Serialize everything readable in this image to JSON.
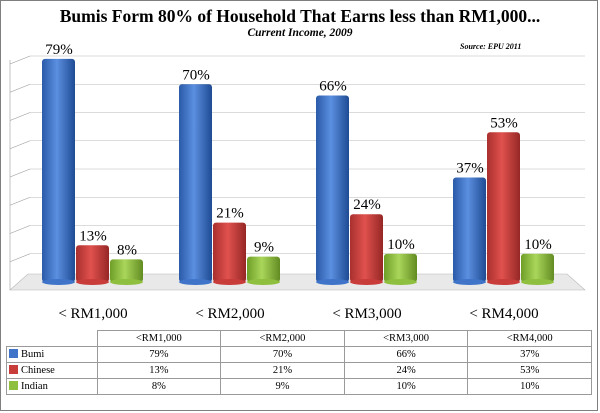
{
  "header": {
    "title": "Bumis Form 80% of Household That Earns less than RM1,000...",
    "subtitle": "Current Income, 2009",
    "source": "Source: EPU 2011"
  },
  "chart_data": {
    "type": "bar",
    "title": "Bumis Form 80% of Household That Earns less than RM1,000...",
    "subtitle": "Current Income, 2009",
    "categories": [
      "< RM1,000",
      "< RM2,000",
      "< RM3,000",
      "< RM4,000"
    ],
    "series": [
      {
        "name": "Bumi",
        "values": [
          79,
          70,
          66,
          37
        ],
        "labels": [
          "79%",
          "70%",
          "66%",
          "37%"
        ],
        "color": "#3f74c8"
      },
      {
        "name": "Chinese",
        "values": [
          13,
          21,
          24,
          53
        ],
        "labels": [
          "13%",
          "21%",
          "24%",
          "53%"
        ],
        "color": "#c83c3a"
      },
      {
        "name": "Indian",
        "values": [
          8,
          9,
          10,
          10
        ],
        "labels": [
          "8%",
          "9%",
          "10%",
          "10%"
        ],
        "color": "#8fbf3f"
      }
    ],
    "ylim": [
      0,
      80
    ],
    "grid": true,
    "legend": "data-table"
  },
  "table": {
    "headers": [
      "<RM1,000",
      "<RM2,000",
      "<RM3,000",
      "<RM4,000"
    ],
    "rows": [
      {
        "label": "Bumi",
        "color": "#3f74c8",
        "cells": [
          "79%",
          "70%",
          "66%",
          "37%"
        ]
      },
      {
        "label": "Chinese",
        "color": "#c83c3a",
        "cells": [
          "13%",
          "21%",
          "24%",
          "53%"
        ]
      },
      {
        "label": "Indian",
        "color": "#8fbf3f",
        "cells": [
          "8%",
          "9%",
          "10%",
          "10%"
        ]
      }
    ]
  }
}
